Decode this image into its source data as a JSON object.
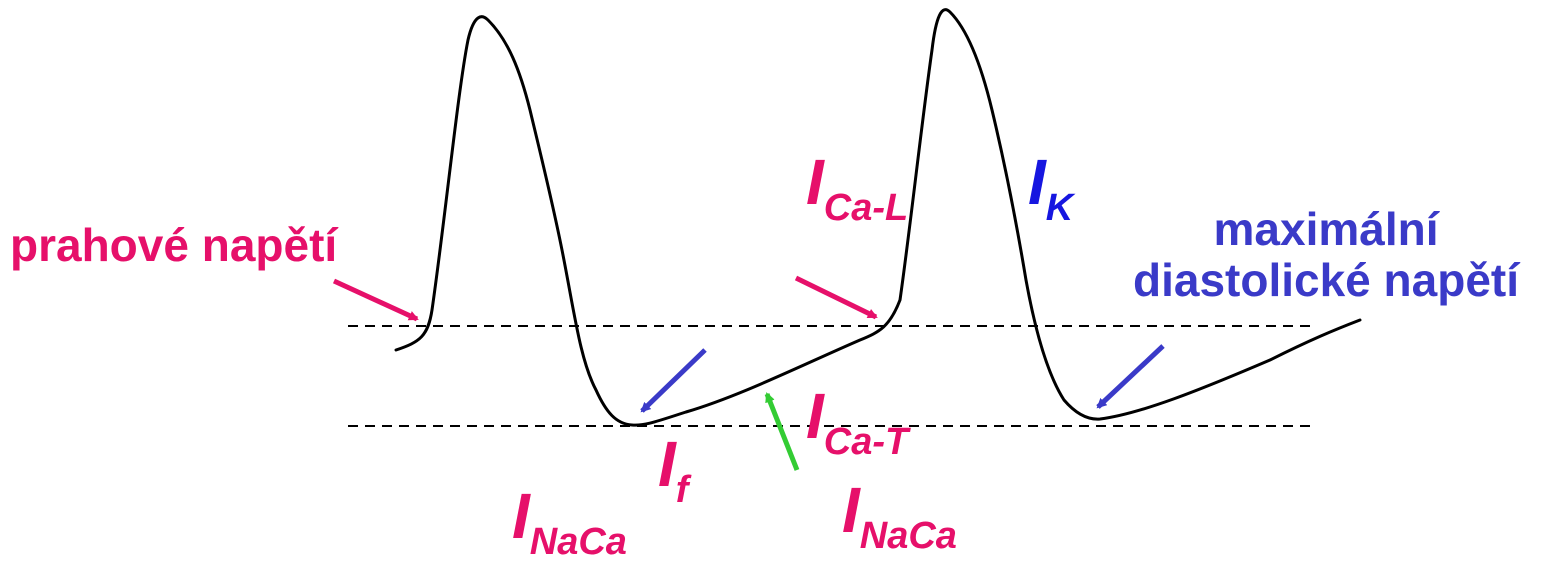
{
  "colors": {
    "trace": "#000000",
    "magenta": "#e6106a",
    "blue": "#3a3ac8",
    "current_blue": "#1616e0",
    "green": "#33cc33",
    "dashed": "#000000"
  },
  "labels": {
    "threshold": "prahové napětí",
    "mdp_line1": "maximální",
    "mdp_line2": "diastolické napětí",
    "ica_l": {
      "main": "I",
      "sub": "Ca-L"
    },
    "ik": {
      "main": "I",
      "sub": "K"
    },
    "ica_t": {
      "main": "I",
      "sub": "Ca-T"
    },
    "if": {
      "main": "I",
      "sub": "f"
    },
    "inaca_left": {
      "main": "I",
      "sub": "NaCa"
    },
    "inaca_right": {
      "main": "I",
      "sub": "NaCa"
    }
  }
}
